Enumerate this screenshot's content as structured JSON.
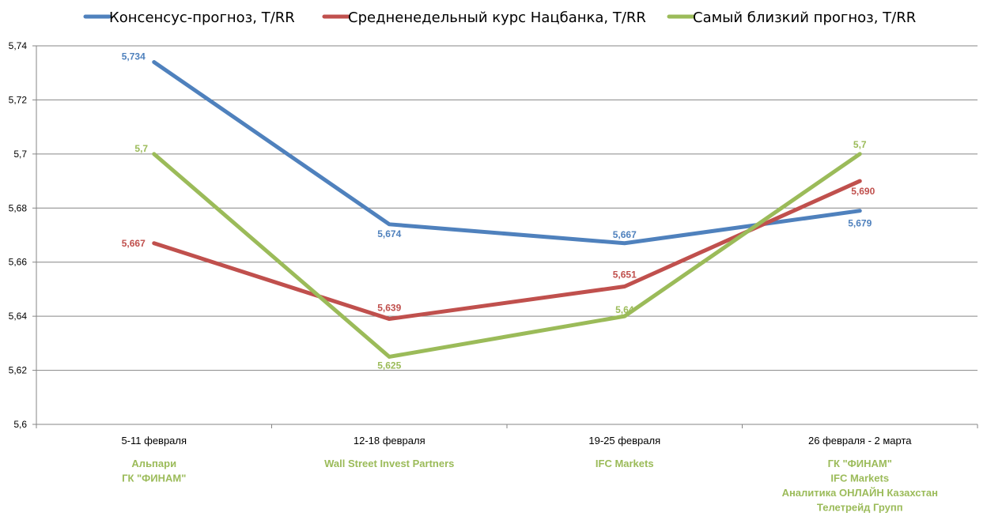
{
  "chart_data": {
    "type": "line",
    "title": "",
    "xlabel": "",
    "ylabel": "",
    "categories": [
      "5-11 февраля",
      "12-18 февраля",
      "19-25 февраля",
      "26 февраля - 2 марта"
    ],
    "ylim": [
      5.6,
      5.74
    ],
    "yticks": [
      "5,6",
      "5,62",
      "5,64",
      "5,66",
      "5,68",
      "5,7",
      "5,72",
      "5,74"
    ],
    "grid": true,
    "legend_position": "top",
    "series": [
      {
        "name": "Консенсус-прогноз, T/RR",
        "color": "#4F81BD",
        "values": [
          5.734,
          5.674,
          5.667,
          5.679
        ],
        "labels": [
          "5,734",
          "5,674",
          "5,667",
          "5,679"
        ]
      },
      {
        "name": "Средненедельный курс Нацбанка, T/RR",
        "color": "#C0504D",
        "values": [
          5.667,
          5.639,
          5.651,
          5.69
        ],
        "labels": [
          "5,667",
          "5,639",
          "5,651",
          "5,690"
        ]
      },
      {
        "name": "Самый близкий прогноз, T/RR",
        "color": "#9BBB59",
        "values": [
          5.7,
          5.625,
          5.64,
          5.7
        ],
        "labels": [
          "5,7",
          "5,625",
          "5,64",
          "5,7"
        ]
      }
    ],
    "forecasters": [
      [
        "Альпари",
        "ГК \"ФИНАМ\""
      ],
      [
        "Wall Street Invest Partners"
      ],
      [
        "IFC Markets"
      ],
      [
        "ГК \"ФИНАМ\"",
        "IFC Markets",
        "Аналитика ОНЛАЙН Казахстан",
        "Телетрейд Групп"
      ]
    ]
  }
}
